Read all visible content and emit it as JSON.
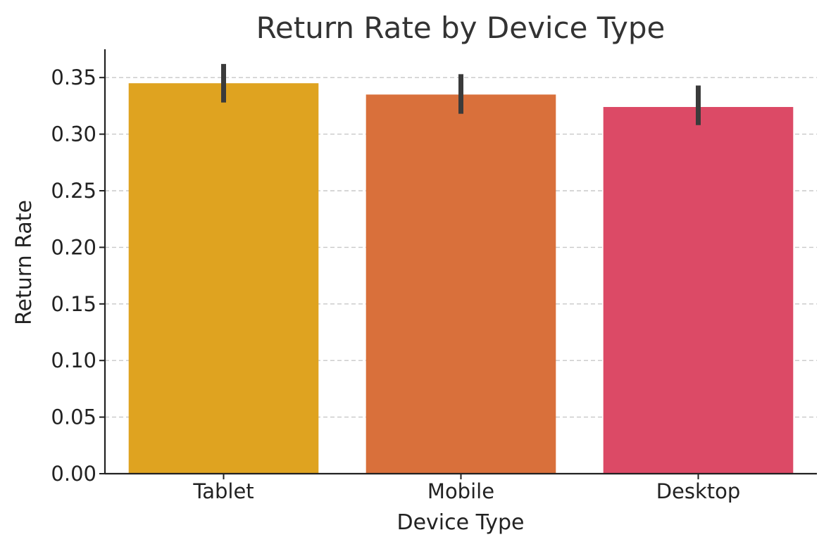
{
  "chart_data": {
    "type": "bar",
    "title": "Return Rate by Device Type",
    "xlabel": "Device Type",
    "ylabel": "Return Rate",
    "categories": [
      "Tablet",
      "Mobile",
      "Desktop"
    ],
    "values": [
      0.345,
      0.335,
      0.324
    ],
    "error_low": [
      0.328,
      0.318,
      0.308
    ],
    "error_high": [
      0.362,
      0.353,
      0.343
    ],
    "colors": [
      "#dfa320",
      "#d9703b",
      "#dc4a66"
    ],
    "error_color": "#3b3b3b",
    "ylim": [
      0,
      0.375
    ],
    "yticks": [
      0.0,
      0.05,
      0.1,
      0.15,
      0.2,
      0.25,
      0.3,
      0.35
    ],
    "ytick_labels": [
      "0.00",
      "0.05",
      "0.10",
      "0.15",
      "0.20",
      "0.25",
      "0.30",
      "0.35"
    ],
    "grid": "y-dashed",
    "legend": "none"
  }
}
